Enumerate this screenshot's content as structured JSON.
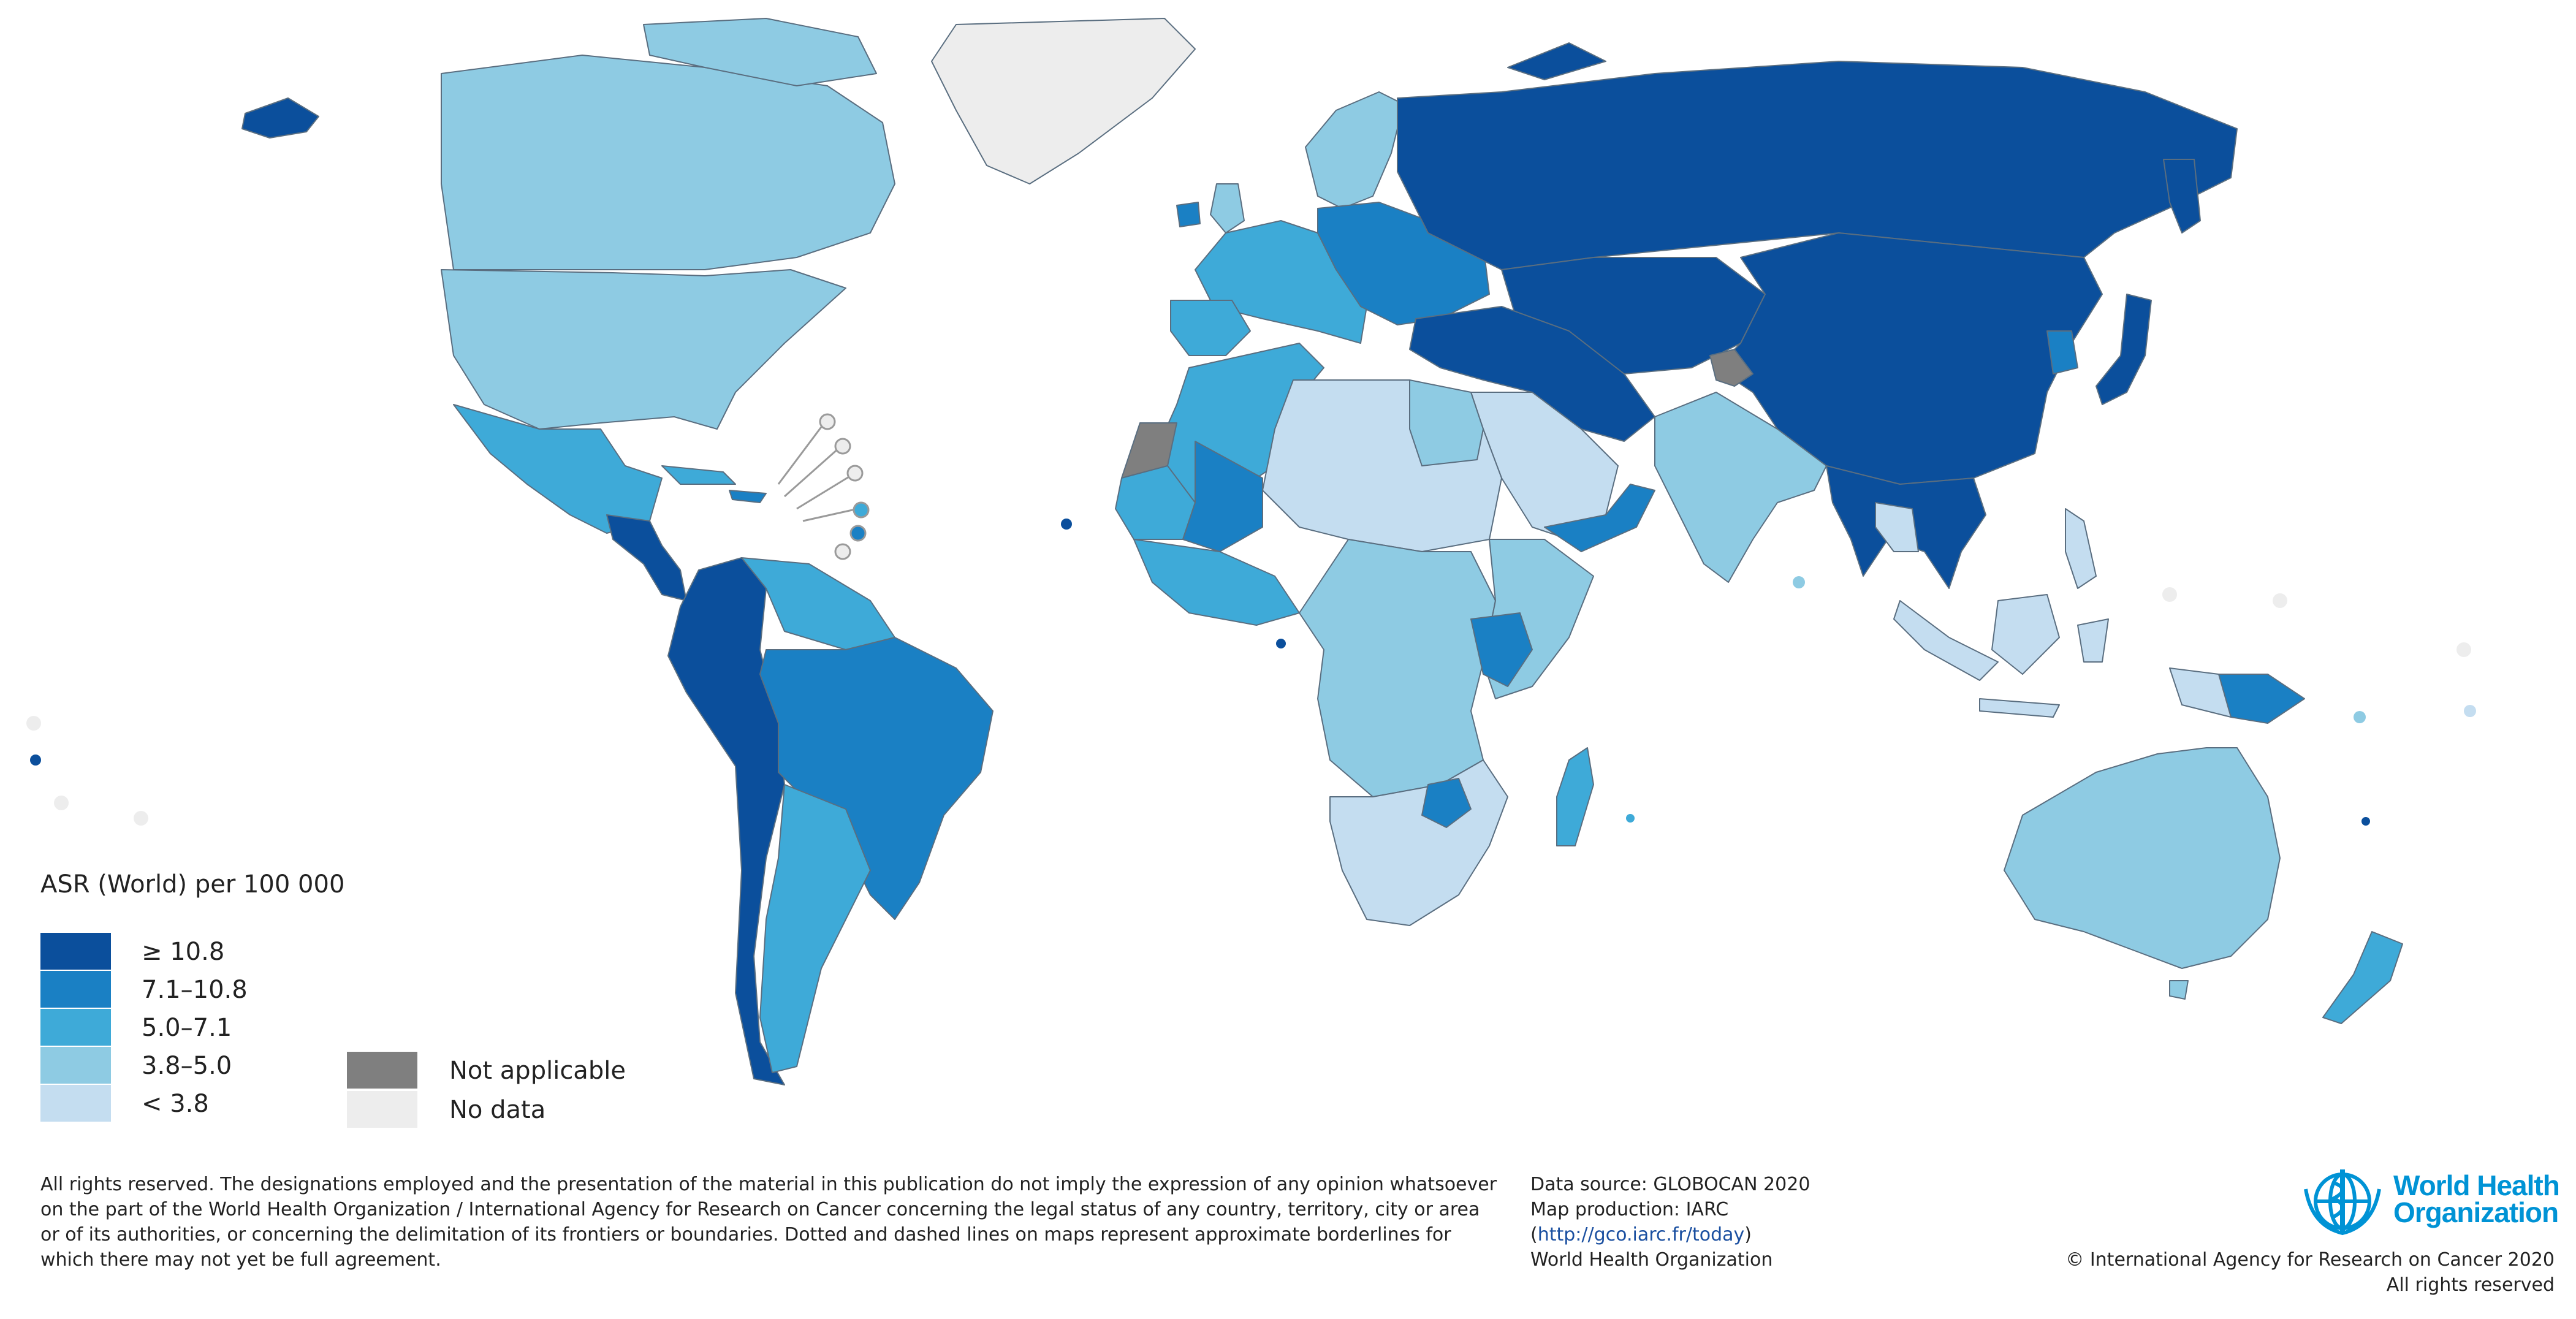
{
  "legend": {
    "title": "ASR (World) per 100 000",
    "classes": [
      {
        "label": "≥ 10.8",
        "color": "#0b4f9c"
      },
      {
        "label": "7.1–10.8",
        "color": "#1a80c4"
      },
      {
        "label": "5.0–7.1",
        "color": "#3eaad8"
      },
      {
        "label": "3.8–5.0",
        "color": "#8ecbe3"
      },
      {
        "label": "< 3.8",
        "color": "#c4ddf0"
      }
    ],
    "special": [
      {
        "label": "Not applicable",
        "color": "#7f7f7f"
      },
      {
        "label": "No data",
        "color": "#ededed"
      }
    ]
  },
  "footer": {
    "disclaimer": "All rights reserved. The designations employed and the presentation of the material in this publication do not imply the expression of any opinion whatsoever on the part of the World Health Organization / International Agency for Research on Cancer concerning the legal status of any country, territory, city or area or of its authorities, or concerning the delimitation of its frontiers or boundaries. Dotted and dashed lines on maps represent approximate borderlines for which there may not yet be full agreement.",
    "data_source": "Data source: GLOBOCAN 2020",
    "map_production": "Map production: IARC",
    "url": "http://gco.iarc.fr/today",
    "org": "World Health Organization",
    "copyright_line1": "© International Agency for Research on Cancer 2020",
    "copyright_line2": "All rights reserved"
  },
  "logo": {
    "line1": "World Health",
    "line2": "Organization"
  },
  "map_regions": [
    {
      "region": "Greenland",
      "class": "No data"
    },
    {
      "region": "Canada",
      "class": "3.8–5.0"
    },
    {
      "region": "United States",
      "class": "3.8–5.0"
    },
    {
      "region": "Alaska",
      "class": "≥ 10.8"
    },
    {
      "region": "Mexico",
      "class": "5.0–7.1"
    },
    {
      "region": "Central America",
      "class": "≥ 10.8"
    },
    {
      "region": "Caribbean",
      "class": "5.0–7.1"
    },
    {
      "region": "Brazil",
      "class": "7.1–10.8"
    },
    {
      "region": "Andean South America",
      "class": "≥ 10.8"
    },
    {
      "region": "Argentina",
      "class": "5.0–7.1"
    },
    {
      "region": "Guianas",
      "class": "5.0–7.1"
    },
    {
      "region": "Western Europe",
      "class": "5.0–7.1"
    },
    {
      "region": "Eastern Europe",
      "class": "7.1–10.8"
    },
    {
      "region": "Scandinavia",
      "class": "3.8–5.0"
    },
    {
      "region": "Russia",
      "class": "≥ 10.8"
    },
    {
      "region": "Central Asia",
      "class": "≥ 10.8"
    },
    {
      "region": "China",
      "class": "≥ 10.8"
    },
    {
      "region": "Japan",
      "class": "≥ 10.8"
    },
    {
      "region": "India",
      "class": "3.8–5.0"
    },
    {
      "region": "Arabian Peninsula",
      "class": "< 3.8"
    },
    {
      "region": "Middle East",
      "class": "≥ 10.8"
    },
    {
      "region": "Southeast Asia",
      "class": "≥ 10.8"
    },
    {
      "region": "Indonesia",
      "class": "< 3.8"
    },
    {
      "region": "Papua New Guinea",
      "class": "7.1–10.8"
    },
    {
      "region": "Australia",
      "class": "3.8–5.0"
    },
    {
      "region": "New Zealand",
      "class": "5.0–7.1"
    },
    {
      "region": "North Africa",
      "class": "5.0–7.1"
    },
    {
      "region": "Egypt",
      "class": "3.8–5.0"
    },
    {
      "region": "Western Sahara",
      "class": "Not applicable"
    },
    {
      "region": "Sahel",
      "class": "< 3.8"
    },
    {
      "region": "Mali",
      "class": "7.1–10.8"
    },
    {
      "region": "Central Africa",
      "class": "3.8–5.0"
    },
    {
      "region": "East Africa",
      "class": "3.8–5.0"
    },
    {
      "region": "Kenya",
      "class": "7.1–10.8"
    },
    {
      "region": "Southern Africa",
      "class": "< 3.8"
    },
    {
      "region": "Zimbabwe",
      "class": "7.1–10.8"
    },
    {
      "region": "Madagascar",
      "class": "5.0–7.1"
    },
    {
      "region": "Kashmir",
      "class": "Not applicable"
    }
  ]
}
